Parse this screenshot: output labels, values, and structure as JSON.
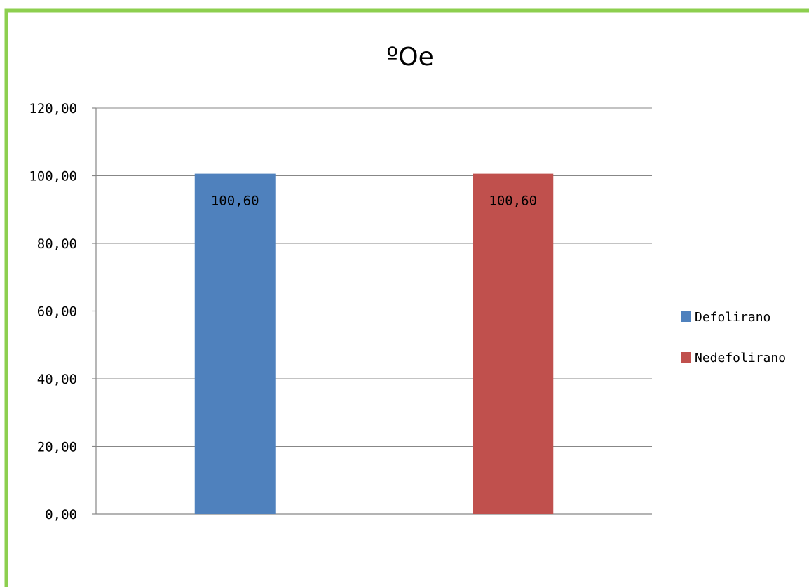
{
  "chart_data": {
    "type": "bar",
    "title": "ºOe",
    "xlabel": "",
    "ylabel": "",
    "ylim": [
      0,
      120
    ],
    "yticks": [
      0,
      20,
      40,
      60,
      80,
      100,
      120
    ],
    "ytick_labels": [
      "0,00",
      "20,00",
      "40,00",
      "60,00",
      "80,00",
      "100,00",
      "120,00"
    ],
    "grid": true,
    "legend_position": "right",
    "categories": [
      ""
    ],
    "series": [
      {
        "name": "Defolirano",
        "values": [
          100.6
        ],
        "label": "100,60",
        "color": "#4f81bd"
      },
      {
        "name": "Nedefolirano",
        "values": [
          100.6
        ],
        "label": "100,60",
        "color": "#c0504d"
      }
    ]
  }
}
